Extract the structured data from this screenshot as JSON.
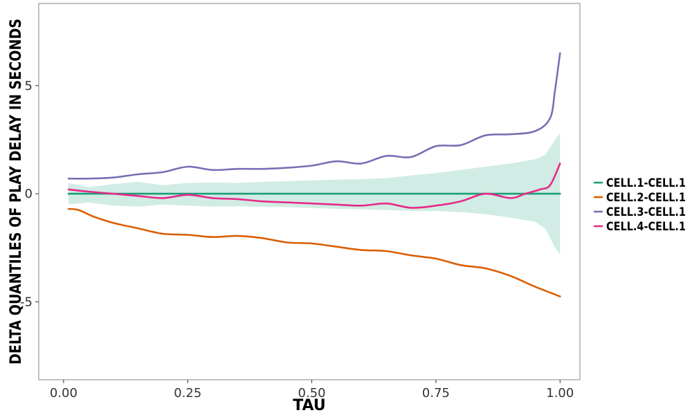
{
  "chart_data": {
    "type": "line",
    "title": "",
    "xlabel": "TAU",
    "ylabel": "DELTA QUANTILES OF PLAY DELAY IN SECONDS",
    "xlim": [
      -0.05,
      1.04
    ],
    "ylim": [
      -8.6,
      8.8
    ],
    "x_ticks": [
      0.0,
      0.25,
      0.5,
      0.75,
      1.0
    ],
    "x_tick_labels": [
      "0.00",
      "0.25",
      "0.50",
      "0.75",
      "1.00"
    ],
    "y_ticks": [
      -5,
      0,
      5
    ],
    "y_tick_labels": [
      "-5",
      "0",
      "5"
    ],
    "grid": false,
    "legend_position": "right",
    "band": {
      "color": "#1b9e77",
      "opacity": 0.2,
      "x": [
        0.01,
        0.05,
        0.1,
        0.15,
        0.2,
        0.25,
        0.3,
        0.35,
        0.4,
        0.45,
        0.5,
        0.55,
        0.6,
        0.65,
        0.7,
        0.75,
        0.8,
        0.85,
        0.9,
        0.95,
        0.97,
        0.99,
        1.0
      ],
      "upper": [
        0.5,
        0.3,
        0.45,
        0.55,
        0.4,
        0.5,
        0.52,
        0.5,
        0.55,
        0.58,
        0.62,
        0.65,
        0.68,
        0.72,
        0.85,
        0.95,
        1.1,
        1.25,
        1.4,
        1.6,
        1.8,
        2.5,
        2.8
      ],
      "lower": [
        -0.5,
        -0.4,
        -0.55,
        -0.6,
        -0.5,
        -0.55,
        -0.6,
        -0.58,
        -0.6,
        -0.62,
        -0.66,
        -0.7,
        -0.72,
        -0.75,
        -0.8,
        -0.8,
        -0.85,
        -0.95,
        -1.1,
        -1.3,
        -1.6,
        -2.5,
        -2.8
      ]
    },
    "series": [
      {
        "name": "CELL.1-CELL.1",
        "color": "#1b9e77",
        "x": [
          0.01,
          1.0
        ],
        "values": [
          0.0,
          0.0
        ]
      },
      {
        "name": "CELL.2-CELL.1",
        "color": "#d95f02",
        "x": [
          0.01,
          0.03,
          0.06,
          0.1,
          0.15,
          0.2,
          0.25,
          0.3,
          0.35,
          0.4,
          0.45,
          0.5,
          0.55,
          0.6,
          0.65,
          0.7,
          0.75,
          0.8,
          0.85,
          0.9,
          0.95,
          1.0
        ],
        "values": [
          -0.7,
          -0.75,
          -1.05,
          -1.35,
          -1.6,
          -1.85,
          -1.9,
          -2.0,
          -1.95,
          -2.05,
          -2.25,
          -2.3,
          -2.45,
          -2.6,
          -2.65,
          -2.85,
          -3.0,
          -3.3,
          -3.45,
          -3.8,
          -4.3,
          -4.75
        ]
      },
      {
        "name": "CELL.3-CELL.1",
        "color": "#7570b3",
        "x": [
          0.01,
          0.05,
          0.1,
          0.15,
          0.2,
          0.25,
          0.3,
          0.35,
          0.4,
          0.45,
          0.5,
          0.55,
          0.6,
          0.65,
          0.7,
          0.75,
          0.8,
          0.85,
          0.9,
          0.95,
          0.98,
          0.99,
          1.0
        ],
        "values": [
          0.7,
          0.7,
          0.75,
          0.9,
          1.0,
          1.25,
          1.1,
          1.15,
          1.15,
          1.2,
          1.3,
          1.5,
          1.4,
          1.75,
          1.7,
          2.2,
          2.25,
          2.7,
          2.75,
          2.9,
          3.5,
          4.8,
          6.5
        ]
      },
      {
        "name": "CELL.4-CELL.1",
        "color": "#e7298a",
        "x": [
          0.01,
          0.05,
          0.1,
          0.15,
          0.2,
          0.25,
          0.3,
          0.35,
          0.4,
          0.45,
          0.5,
          0.55,
          0.6,
          0.65,
          0.7,
          0.75,
          0.8,
          0.85,
          0.9,
          0.93,
          0.96,
          0.98,
          1.0
        ],
        "values": [
          0.2,
          0.1,
          0.0,
          -0.1,
          -0.2,
          -0.05,
          -0.2,
          -0.25,
          -0.35,
          -0.4,
          -0.45,
          -0.5,
          -0.55,
          -0.45,
          -0.65,
          -0.55,
          -0.35,
          0.0,
          -0.2,
          0.0,
          0.2,
          0.4,
          1.4
        ]
      }
    ]
  }
}
